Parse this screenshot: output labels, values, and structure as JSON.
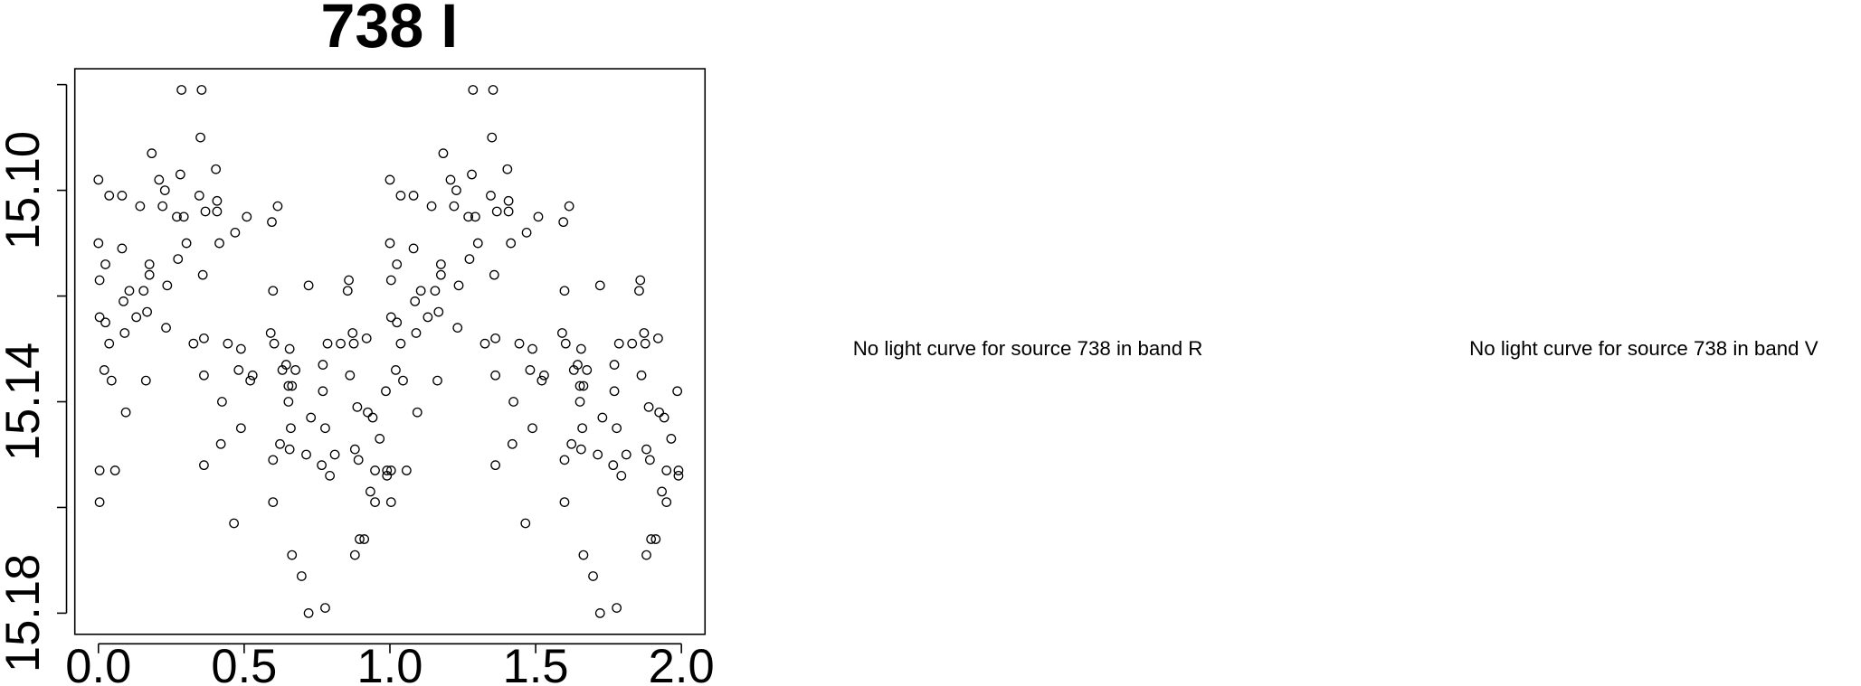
{
  "chart_data": {
    "type": "scatter",
    "title": "738 I",
    "color": "#000000",
    "xlim": [
      -0.081,
      2.081
    ],
    "ylim": [
      15.184,
      15.077
    ],
    "xticks": [
      {
        "value": 0,
        "label": "0.0"
      },
      {
        "value": 0.5,
        "label": "0.5"
      },
      {
        "value": 1,
        "label": "1.0"
      },
      {
        "value": 1.5,
        "label": "1.5"
      },
      {
        "value": 2,
        "label": "2.0"
      }
    ],
    "yticks": [
      {
        "value": 15.08,
        "label": null
      },
      {
        "value": 15.1,
        "label": "15.10"
      },
      {
        "value": 15.12,
        "label": null
      },
      {
        "value": 15.14,
        "label": "15.14"
      },
      {
        "value": 15.16,
        "label": null
      },
      {
        "value": 15.18,
        "label": "15.18"
      }
    ],
    "series": [
      {
        "x": [
          0.0,
          0.0,
          0.004,
          0.004,
          0.004,
          0.004,
          0.024,
          0.024,
          0.037,
          0.02,
          0.045,
          0.037,
          0.057,
          0.081,
          0.081,
          0.086,
          0.09,
          0.094,
          0.106,
          0.13,
          0.143,
          0.155,
          0.163,
          0.167,
          0.175,
          0.175,
          0.183,
          0.208,
          0.22,
          0.228,
          0.232,
          0.236,
          0.269,
          0.273,
          0.285,
          0.281,
          0.293,
          0.302,
          0.326,
          0.346,
          0.354,
          0.35,
          0.358,
          0.362,
          0.362,
          0.362,
          0.367,
          0.403,
          0.407,
          0.407,
          0.415,
          0.424,
          0.42,
          0.444,
          0.465,
          0.469,
          0.481,
          0.489,
          0.489,
          0.509,
          0.521,
          0.529,
          0.591,
          0.595,
          0.599,
          0.599,
          0.599,
          0.615,
          0.603,
          0.623,
          0.631,
          0.644,
          0.652,
          0.652,
          0.656,
          0.656,
          0.66,
          0.664,
          0.664,
          0.676,
          0.697,
          0.713,
          0.721,
          0.721,
          0.729,
          0.766,
          0.77,
          0.77,
          0.778,
          0.778,
          0.786,
          0.794,
          0.811,
          0.831,
          0.855,
          0.859,
          0.863,
          0.872,
          0.876,
          0.88,
          0.88,
          0.888,
          0.892,
          0.896,
          0.912,
          0.92,
          0.924,
          0.933,
          0.941,
          0.949,
          0.949,
          0.965,
          0.986,
          0.99,
          0.99,
          1.0,
          1.0,
          1.004,
          1.004,
          1.004,
          1.004,
          1.024,
          1.024,
          1.037,
          1.02,
          1.045,
          1.037,
          1.057,
          1.081,
          1.081,
          1.086,
          1.09,
          1.094,
          1.106,
          1.13,
          1.143,
          1.155,
          1.163,
          1.167,
          1.175,
          1.175,
          1.183,
          1.208,
          1.22,
          1.228,
          1.232,
          1.236,
          1.269,
          1.273,
          1.285,
          1.281,
          1.293,
          1.302,
          1.326,
          1.346,
          1.354,
          1.35,
          1.358,
          1.362,
          1.362,
          1.362,
          1.367,
          1.403,
          1.407,
          1.407,
          1.415,
          1.424,
          1.42,
          1.444,
          1.465,
          1.469,
          1.481,
          1.489,
          1.489,
          1.509,
          1.521,
          1.529,
          1.591,
          1.595,
          1.599,
          1.599,
          1.599,
          1.615,
          1.603,
          1.623,
          1.631,
          1.644,
          1.652,
          1.652,
          1.656,
          1.656,
          1.66,
          1.664,
          1.664,
          1.676,
          1.697,
          1.713,
          1.721,
          1.721,
          1.729,
          1.766,
          1.77,
          1.77,
          1.778,
          1.778,
          1.786,
          1.794,
          1.811,
          1.831,
          1.855,
          1.859,
          1.863,
          1.872,
          1.876,
          1.88,
          1.88,
          1.888,
          1.892,
          1.896,
          1.912,
          1.92,
          1.924,
          1.933,
          1.941,
          1.949,
          1.949,
          1.965,
          1.986,
          1.99,
          1.99
        ],
        "values": [
          15.098,
          15.11,
          15.117,
          15.124,
          15.153,
          15.159,
          15.114,
          15.125,
          15.129,
          15.134,
          15.136,
          15.101,
          15.153,
          15.101,
          15.111,
          15.121,
          15.127,
          15.142,
          15.119,
          15.124,
          15.103,
          15.119,
          15.136,
          15.123,
          15.116,
          15.114,
          15.093,
          15.098,
          15.103,
          15.1,
          15.126,
          15.118,
          15.105,
          15.113,
          15.081,
          15.097,
          15.105,
          15.11,
          15.129,
          15.101,
          15.081,
          15.09,
          15.116,
          15.128,
          15.135,
          15.152,
          15.104,
          15.096,
          15.104,
          15.102,
          15.11,
          15.14,
          15.148,
          15.129,
          15.163,
          15.108,
          15.134,
          15.145,
          15.13,
          15.105,
          15.136,
          15.135,
          15.127,
          15.106,
          15.119,
          15.151,
          15.159,
          15.103,
          15.129,
          15.148,
          15.134,
          15.133,
          15.14,
          15.137,
          15.13,
          15.149,
          15.145,
          15.137,
          15.169,
          15.134,
          15.173,
          15.15,
          15.18,
          15.118,
          15.143,
          15.152,
          15.133,
          15.138,
          15.145,
          15.179,
          15.129,
          15.154,
          15.15,
          15.129,
          15.119,
          15.117,
          15.135,
          15.127,
          15.129,
          15.149,
          15.169,
          15.141,
          15.151,
          15.166,
          15.166,
          15.128,
          15.142,
          15.157,
          15.143,
          15.159,
          15.153,
          15.147,
          15.138,
          15.154,
          15.153,
          15.098,
          15.11,
          15.117,
          15.124,
          15.153,
          15.159,
          15.114,
          15.125,
          15.129,
          15.134,
          15.136,
          15.101,
          15.153,
          15.101,
          15.111,
          15.121,
          15.127,
          15.142,
          15.119,
          15.124,
          15.103,
          15.119,
          15.136,
          15.123,
          15.116,
          15.114,
          15.093,
          15.098,
          15.103,
          15.1,
          15.126,
          15.118,
          15.105,
          15.113,
          15.081,
          15.097,
          15.105,
          15.11,
          15.129,
          15.101,
          15.081,
          15.09,
          15.116,
          15.128,
          15.135,
          15.152,
          15.104,
          15.096,
          15.104,
          15.102,
          15.11,
          15.14,
          15.148,
          15.129,
          15.163,
          15.108,
          15.134,
          15.145,
          15.13,
          15.105,
          15.136,
          15.135,
          15.127,
          15.106,
          15.119,
          15.151,
          15.159,
          15.103,
          15.129,
          15.148,
          15.134,
          15.133,
          15.14,
          15.137,
          15.13,
          15.149,
          15.145,
          15.137,
          15.169,
          15.134,
          15.173,
          15.15,
          15.18,
          15.118,
          15.143,
          15.152,
          15.133,
          15.138,
          15.145,
          15.179,
          15.129,
          15.154,
          15.15,
          15.129,
          15.119,
          15.117,
          15.135,
          15.127,
          15.129,
          15.149,
          15.169,
          15.141,
          15.151,
          15.166,
          15.166,
          15.128,
          15.142,
          15.157,
          15.143,
          15.159,
          15.153,
          15.147,
          15.138,
          15.154,
          15.153
        ]
      }
    ]
  },
  "messages": [
    "No light curve for source 738 in band R",
    "No light curve for source 738 in band V"
  ]
}
